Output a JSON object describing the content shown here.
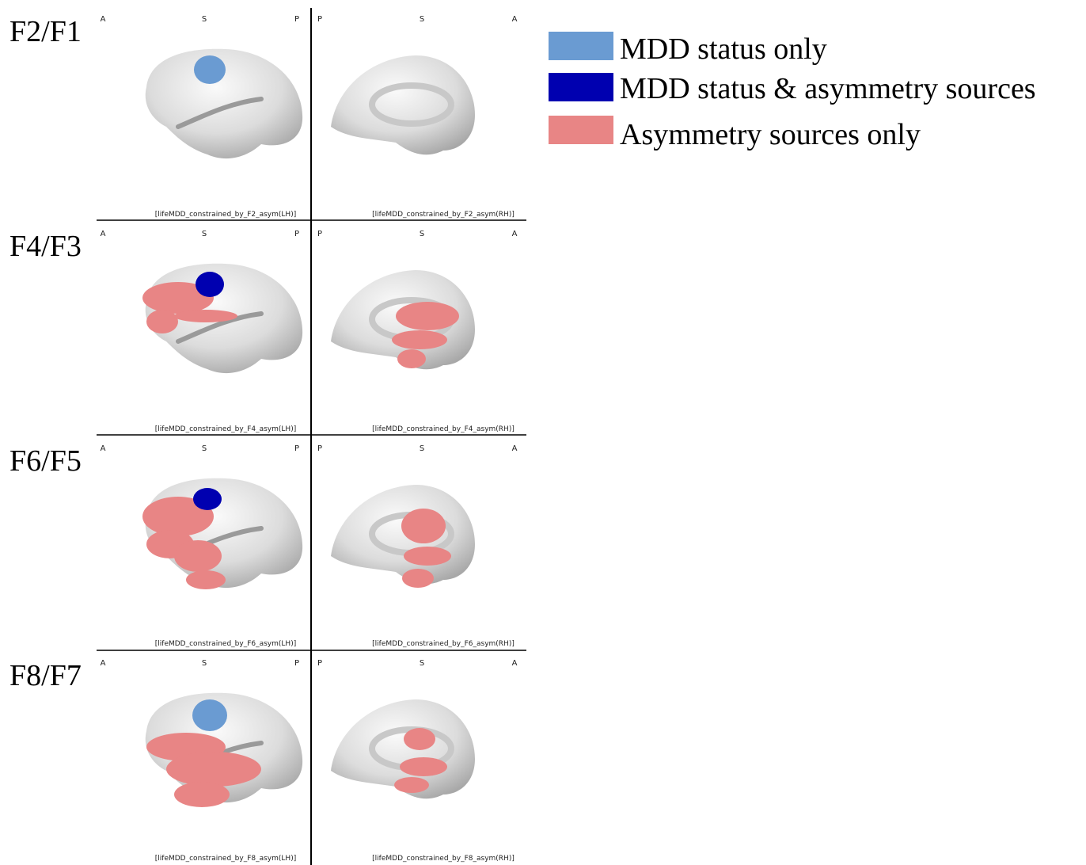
{
  "rows": [
    {
      "label": "F2/F1",
      "left": {
        "orientation": [
          "A",
          "S",
          "P"
        ],
        "caption": "[lifeMDD_constrained_by_F2_asym(LH)]"
      },
      "right": {
        "orientation": [
          "P",
          "S",
          "A"
        ],
        "caption": "[lifeMDD_constrained_by_F2_asym(RH)]"
      }
    },
    {
      "label": "F4/F3",
      "left": {
        "orientation": [
          "A",
          "S",
          "P"
        ],
        "caption": "[lifeMDD_constrained_by_F4_asym(LH)]"
      },
      "right": {
        "orientation": [
          "P",
          "S",
          "A"
        ],
        "caption": "[lifeMDD_constrained_by_F4_asym(RH)]"
      }
    },
    {
      "label": "F6/F5",
      "left": {
        "orientation": [
          "A",
          "S",
          "P"
        ],
        "caption": "[lifeMDD_constrained_by_F6_asym(LH)]"
      },
      "right": {
        "orientation": [
          "P",
          "S",
          "A"
        ],
        "caption": "[lifeMDD_constrained_by_F6_asym(RH)]"
      }
    },
    {
      "label": "F8/F7",
      "left": {
        "orientation": [
          "A",
          "S",
          "P"
        ],
        "caption": "[lifeMDD_constrained_by_F8_asym(LH)]"
      },
      "right": {
        "orientation": [
          "P",
          "S",
          "A"
        ],
        "caption": "[lifeMDD_constrained_by_F8_asym(RH)]"
      }
    }
  ],
  "legend": [
    {
      "label": "MDD status only",
      "color": "#6a9bd2"
    },
    {
      "label": "MDD status & asymmetry sources",
      "color": "#0000b0"
    },
    {
      "label": "Asymmetry sources only",
      "color": "#e88585"
    }
  ]
}
